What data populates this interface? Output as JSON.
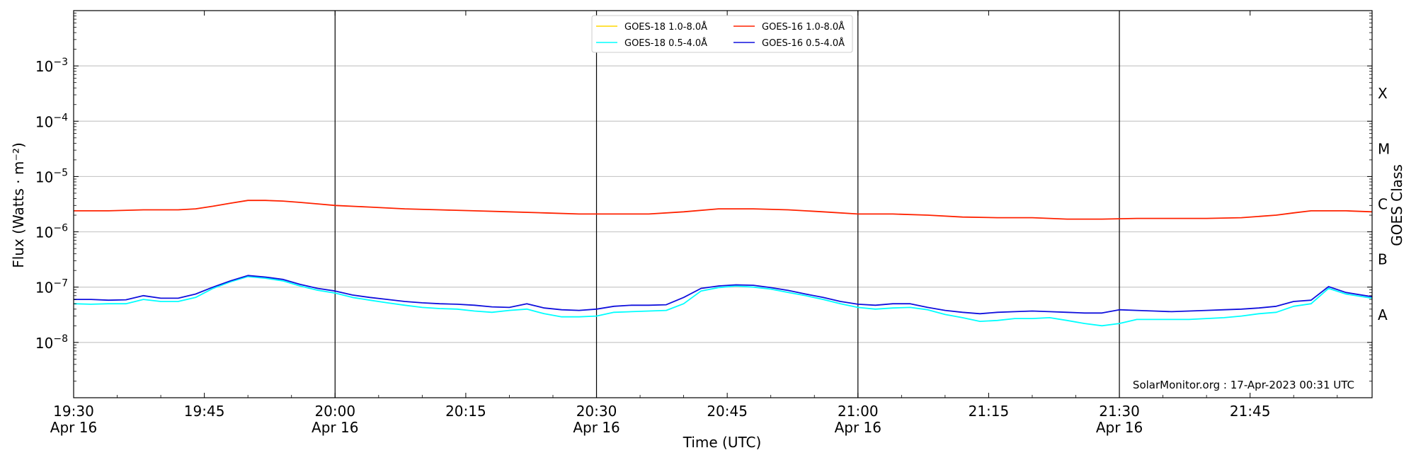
{
  "chart_data": {
    "type": "line",
    "title": "",
    "xlabel": "Time (UTC)",
    "ylabel": "Flux (Watts · m⁻²)",
    "y2label": "GOES Class",
    "yscale": "log",
    "ylim": [
      1e-09,
      0.01
    ],
    "xlim_minutes": [
      0,
      149
    ],
    "x_ticks": [
      {
        "t": 0,
        "line1": "19:30",
        "line2": "Apr 16"
      },
      {
        "t": 15,
        "line1": "19:45",
        "line2": ""
      },
      {
        "t": 30,
        "line1": "20:00",
        "line2": "Apr 16"
      },
      {
        "t": 45,
        "line1": "20:15",
        "line2": ""
      },
      {
        "t": 60,
        "line1": "20:30",
        "line2": "Apr 16"
      },
      {
        "t": 75,
        "line1": "20:45",
        "line2": ""
      },
      {
        "t": 90,
        "line1": "21:00",
        "line2": "Apr 16"
      },
      {
        "t": 105,
        "line1": "21:15",
        "line2": ""
      },
      {
        "t": 120,
        "line1": "21:30",
        "line2": "Apr 16"
      },
      {
        "t": 135,
        "line1": "21:45",
        "line2": ""
      }
    ],
    "vertical_lines": [
      30,
      60,
      90,
      120
    ],
    "y_ticks": [
      {
        "exp": -8,
        "label": "10",
        "sup": "−8"
      },
      {
        "exp": -7,
        "label": "10",
        "sup": "−7"
      },
      {
        "exp": -6,
        "label": "10",
        "sup": "−6"
      },
      {
        "exp": -5,
        "label": "10",
        "sup": "−5"
      },
      {
        "exp": -4,
        "label": "10",
        "sup": "−4"
      },
      {
        "exp": -3,
        "label": "10",
        "sup": "−3"
      }
    ],
    "classes": [
      {
        "label": "A",
        "exp": -7.5
      },
      {
        "label": "B",
        "exp": -6.5
      },
      {
        "label": "C",
        "exp": -5.5
      },
      {
        "label": "M",
        "exp": -4.5
      },
      {
        "label": "X",
        "exp": -3.5
      }
    ],
    "grid": true,
    "legend_position": "top-center",
    "credit": "SolarMonitor.org : 17-Apr-2023 00:31 UTC",
    "series": [
      {
        "name": "GOES-18 1.0-8.0Å",
        "color": "#ffd700",
        "x": [],
        "values": []
      },
      {
        "name": "GOES-18 0.5-4.0Å",
        "color": "#00ffff",
        "x": [
          0,
          2,
          4,
          6,
          8,
          10,
          12,
          14,
          16,
          18,
          20,
          22,
          24,
          26,
          28,
          30,
          32,
          34,
          36,
          38,
          40,
          42,
          44,
          46,
          48,
          50,
          52,
          54,
          56,
          58,
          60,
          62,
          64,
          66,
          68,
          70,
          72,
          74,
          76,
          78,
          80,
          82,
          84,
          86,
          88,
          90,
          92,
          94,
          96,
          98,
          100,
          102,
          104,
          106,
          108,
          110,
          112,
          114,
          116,
          118,
          120,
          122,
          124,
          126,
          128,
          130,
          132,
          134,
          136,
          138,
          140,
          142,
          144,
          146,
          149
        ],
        "values": [
          5e-08,
          4.9e-08,
          5e-08,
          5e-08,
          6e-08,
          5.5e-08,
          5.5e-08,
          6.5e-08,
          9.5e-08,
          1.25e-07,
          1.55e-07,
          1.45e-07,
          1.3e-07,
          1.05e-07,
          8.8e-08,
          7.8e-08,
          6.5e-08,
          5.8e-08,
          5.2e-08,
          4.7e-08,
          4.3e-08,
          4.1e-08,
          4e-08,
          3.7e-08,
          3.5e-08,
          3.8e-08,
          4e-08,
          3.3e-08,
          2.9e-08,
          2.9e-08,
          3e-08,
          3.5e-08,
          3.6e-08,
          3.7e-08,
          3.8e-08,
          5e-08,
          8.5e-08,
          9.8e-08,
          1.05e-07,
          1e-07,
          9.2e-08,
          8e-08,
          7e-08,
          6e-08,
          5e-08,
          4.3e-08,
          4e-08,
          4.2e-08,
          4.3e-08,
          3.9e-08,
          3.2e-08,
          2.8e-08,
          2.4e-08,
          2.5e-08,
          2.7e-08,
          2.7e-08,
          2.8e-08,
          2.5e-08,
          2.2e-08,
          2e-08,
          2.2e-08,
          2.6e-08,
          2.6e-08,
          2.6e-08,
          2.6e-08,
          2.7e-08,
          2.8e-08,
          3e-08,
          3.3e-08,
          3.5e-08,
          4.5e-08,
          5e-08,
          9.5e-08,
          7.5e-08,
          6.3e-08
        ]
      },
      {
        "name": "GOES-16 1.0-8.0Å",
        "color": "#ff2200",
        "x": [
          0,
          4,
          8,
          12,
          14,
          16,
          18,
          20,
          22,
          24,
          26,
          28,
          30,
          34,
          38,
          42,
          46,
          50,
          54,
          58,
          62,
          66,
          70,
          74,
          78,
          82,
          86,
          90,
          94,
          98,
          102,
          106,
          110,
          114,
          118,
          122,
          126,
          130,
          134,
          138,
          140,
          142,
          146,
          149
        ],
        "values": [
          2.4e-06,
          2.4e-06,
          2.5e-06,
          2.5e-06,
          2.6e-06,
          2.9e-06,
          3.3e-06,
          3.7e-06,
          3.7e-06,
          3.6e-06,
          3.4e-06,
          3.2e-06,
          3e-06,
          2.8e-06,
          2.6e-06,
          2.5e-06,
          2.4e-06,
          2.3e-06,
          2.2e-06,
          2.1e-06,
          2.1e-06,
          2.1e-06,
          2.3e-06,
          2.6e-06,
          2.6e-06,
          2.5e-06,
          2.3e-06,
          2.1e-06,
          2.1e-06,
          2e-06,
          1.85e-06,
          1.8e-06,
          1.8e-06,
          1.7e-06,
          1.7e-06,
          1.75e-06,
          1.75e-06,
          1.75e-06,
          1.8e-06,
          2e-06,
          2.2e-06,
          2.4e-06,
          2.4e-06,
          2.3e-06
        ]
      },
      {
        "name": "GOES-16 0.5-4.0Å",
        "color": "#1010dd",
        "x": [
          0,
          2,
          4,
          6,
          8,
          10,
          12,
          14,
          16,
          18,
          20,
          22,
          24,
          26,
          28,
          30,
          32,
          34,
          36,
          38,
          40,
          42,
          44,
          46,
          48,
          50,
          52,
          54,
          56,
          58,
          60,
          62,
          64,
          66,
          68,
          70,
          72,
          74,
          76,
          78,
          80,
          82,
          84,
          86,
          88,
          90,
          92,
          94,
          96,
          98,
          100,
          102,
          104,
          106,
          108,
          110,
          112,
          114,
          116,
          118,
          120,
          122,
          124,
          126,
          128,
          130,
          132,
          134,
          136,
          138,
          140,
          142,
          144,
          146,
          149
        ],
        "values": [
          6e-08,
          6e-08,
          5.8e-08,
          5.9e-08,
          7e-08,
          6.3e-08,
          6.3e-08,
          7.5e-08,
          1e-07,
          1.3e-07,
          1.62e-07,
          1.52e-07,
          1.38e-07,
          1.12e-07,
          9.5e-08,
          8.5e-08,
          7.2e-08,
          6.5e-08,
          6e-08,
          5.5e-08,
          5.2e-08,
          5e-08,
          4.9e-08,
          4.7e-08,
          4.4e-08,
          4.3e-08,
          5e-08,
          4.2e-08,
          3.9e-08,
          3.8e-08,
          4e-08,
          4.5e-08,
          4.7e-08,
          4.7e-08,
          4.8e-08,
          6.5e-08,
          9.5e-08,
          1.05e-07,
          1.1e-07,
          1.08e-07,
          9.8e-08,
          8.7e-08,
          7.5e-08,
          6.5e-08,
          5.5e-08,
          4.9e-08,
          4.7e-08,
          5e-08,
          5e-08,
          4.3e-08,
          3.8e-08,
          3.5e-08,
          3.3e-08,
          3.5e-08,
          3.6e-08,
          3.7e-08,
          3.6e-08,
          3.5e-08,
          3.4e-08,
          3.4e-08,
          3.9e-08,
          3.8e-08,
          3.7e-08,
          3.6e-08,
          3.7e-08,
          3.8e-08,
          3.9e-08,
          4e-08,
          4.2e-08,
          4.5e-08,
          5.5e-08,
          5.8e-08,
          1.02e-07,
          8e-08,
          6.7e-08
        ]
      }
    ]
  }
}
